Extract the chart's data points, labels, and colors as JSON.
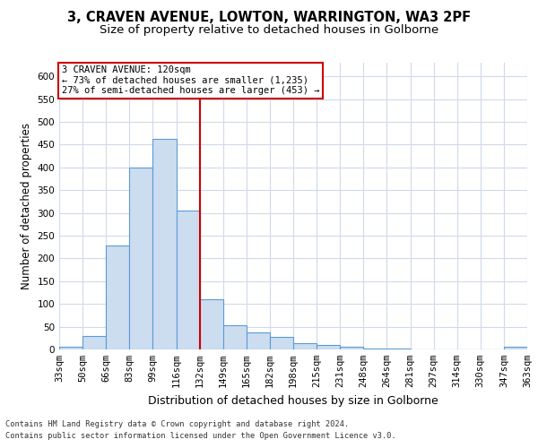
{
  "title1": "3, CRAVEN AVENUE, LOWTON, WARRINGTON, WA3 2PF",
  "title2": "Size of property relative to detached houses in Golborne",
  "xlabel": "Distribution of detached houses by size in Golborne",
  "ylabel": "Number of detached properties",
  "bins": [
    "33sqm",
    "50sqm",
    "66sqm",
    "83sqm",
    "99sqm",
    "116sqm",
    "132sqm",
    "149sqm",
    "165sqm",
    "182sqm",
    "198sqm",
    "215sqm",
    "231sqm",
    "248sqm",
    "264sqm",
    "281sqm",
    "297sqm",
    "314sqm",
    "330sqm",
    "347sqm",
    "363sqm"
  ],
  "values": [
    5,
    30,
    228,
    400,
    462,
    305,
    110,
    53,
    38,
    28,
    13,
    10,
    5,
    2,
    1,
    0,
    0,
    0,
    0,
    5
  ],
  "bar_color": "#ccddf0",
  "bar_edge_color": "#5b9bd5",
  "vline_x": 6,
  "vline_color": "#cc0000",
  "annotation_text": "3 CRAVEN AVENUE: 120sqm\n← 73% of detached houses are smaller (1,235)\n27% of semi-detached houses are larger (453) →",
  "annotation_box_color": "#ffffff",
  "annotation_box_edge": "#cc0000",
  "footer1": "Contains HM Land Registry data © Crown copyright and database right 2024.",
  "footer2": "Contains public sector information licensed under the Open Government Licence v3.0.",
  "ylim": [
    0,
    630
  ],
  "yticks": [
    0,
    50,
    100,
    150,
    200,
    250,
    300,
    350,
    400,
    450,
    500,
    550,
    600
  ],
  "bg_color": "#ffffff",
  "grid_color": "#d0daea",
  "title1_fontsize": 10.5,
  "title2_fontsize": 9.5,
  "tick_fontsize": 7.5,
  "ylabel_fontsize": 8.5,
  "xlabel_fontsize": 9
}
